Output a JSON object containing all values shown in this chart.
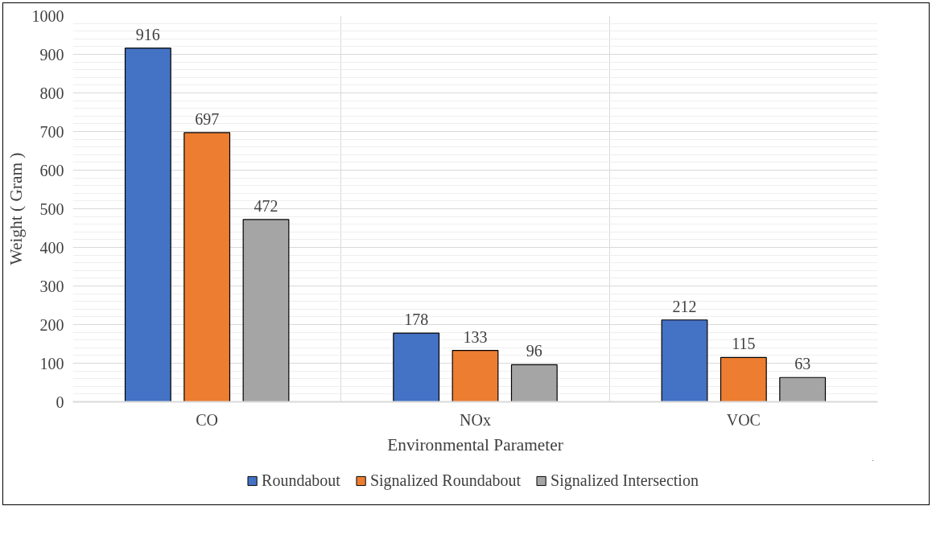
{
  "chart_data": {
    "type": "bar",
    "xlabel": "Environmental Parameter",
    "ylabel": "Weight ( Gram )",
    "categories": [
      "CO",
      "NOx",
      "VOC"
    ],
    "series": [
      {
        "name": "Roundabout",
        "color": "#4472c4",
        "values": [
          916,
          178,
          212
        ]
      },
      {
        "name": "Signalized Roundabout",
        "color": "#ed7d31",
        "values": [
          697,
          133,
          115
        ]
      },
      {
        "name": "Signalized Intersection",
        "color": "#a5a5a5",
        "values": [
          472,
          96,
          63
        ]
      }
    ],
    "ylim": [
      0,
      1000
    ],
    "yticks": [
      0,
      100,
      200,
      300,
      400,
      500,
      600,
      700,
      800,
      900,
      1000
    ],
    "grid": true,
    "legend": "bottom",
    "data_labels": true
  }
}
